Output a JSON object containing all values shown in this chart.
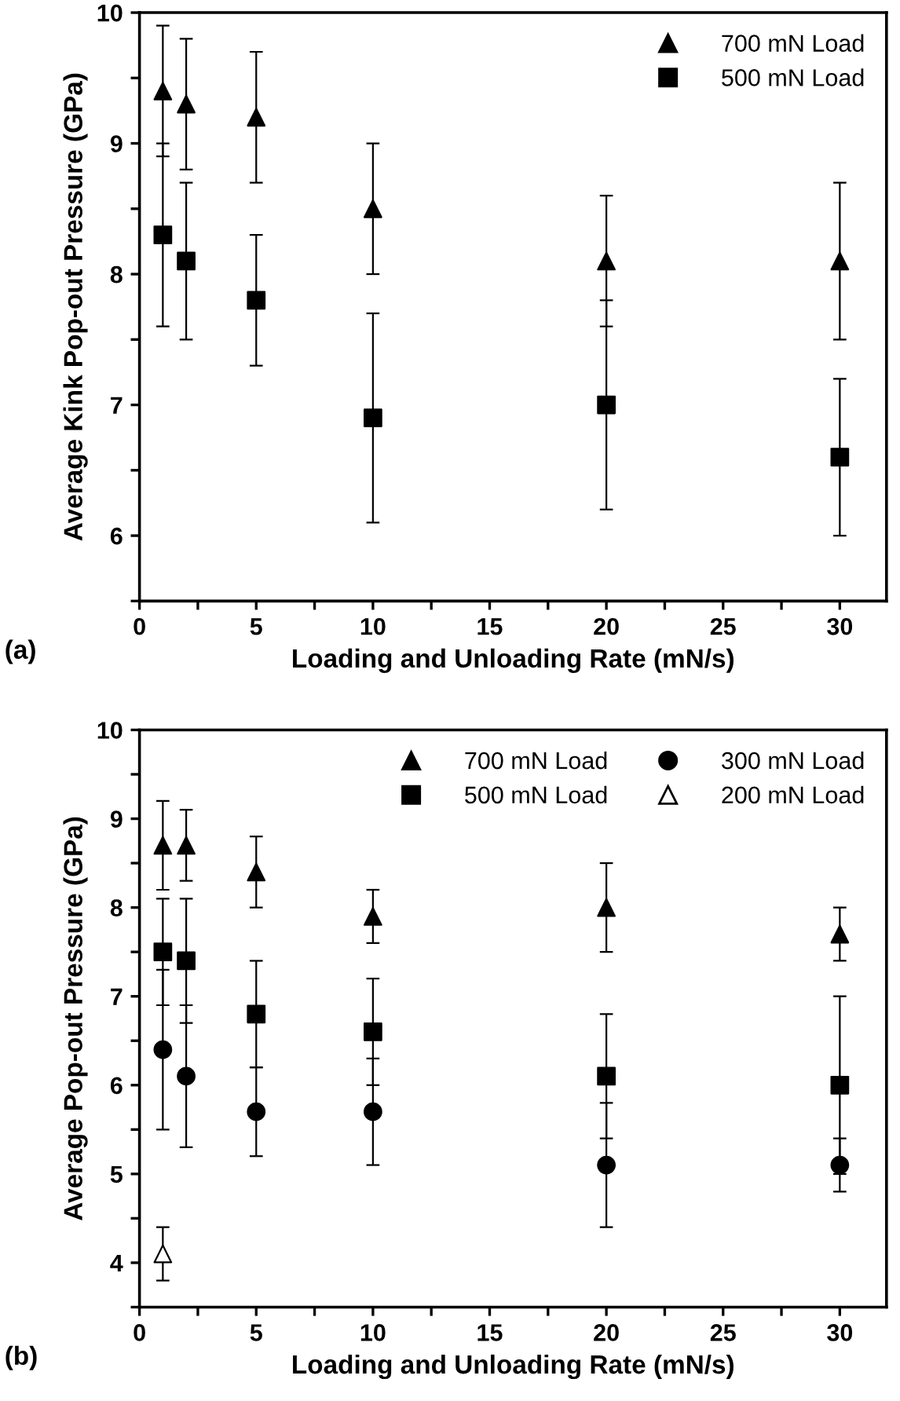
{
  "chart_data": [
    {
      "type": "scatter",
      "ylabel": "Average Kink Pop-out Pressure (GPa)",
      "xlabel": "Loading and Unloading Rate (mN/s)",
      "annotations": [
        "(a)"
      ],
      "xlim": [
        0,
        32
      ],
      "ylim": [
        5.5,
        10
      ],
      "xticks": [
        0,
        {
          "value": 2.5,
          "label": null
        },
        5,
        {
          "value": 7.5,
          "label": null
        },
        10,
        {
          "value": 12.5,
          "label": null
        },
        15,
        {
          "value": 17.5,
          "label": null
        },
        20,
        {
          "value": 22.5,
          "label": null
        },
        25,
        {
          "value": 27.5,
          "label": null
        },
        30
      ],
      "yticks": [
        {
          "value": 5.5,
          "label": null
        },
        6,
        {
          "value": 6.5,
          "label": null
        },
        7,
        {
          "value": 7.5,
          "label": null
        },
        8,
        {
          "value": 8.5,
          "label": null
        },
        9,
        {
          "value": 9.5,
          "label": null
        },
        10
      ],
      "legend": "top right",
      "grid": false,
      "series": [
        {
          "name": "700 mN Load",
          "color": "#000000",
          "marker": "triangle",
          "x": [
            1,
            2,
            5,
            10,
            20,
            30
          ],
          "values": [
            9.4,
            9.3,
            9.2,
            8.5,
            8.1,
            8.1
          ],
          "errors": [
            0.5,
            0.5,
            0.5,
            0.5,
            0.5,
            0.6
          ]
        },
        {
          "name": "500 mN Load",
          "color": "#000000",
          "marker": "square",
          "x": [
            1,
            2,
            5,
            10,
            20,
            30
          ],
          "values": [
            8.3,
            8.1,
            7.8,
            6.9,
            7.0,
            6.6
          ],
          "errors": [
            0.7,
            0.6,
            0.5,
            0.8,
            0.8,
            0.6
          ]
        }
      ]
    },
    {
      "type": "scatter",
      "ylabel": "Average Pop-out Pressure (GPa)",
      "xlabel": "Loading and Unloading Rate (mN/s)",
      "annotations": [
        "(b)"
      ],
      "xlim": [
        0,
        32
      ],
      "ylim": [
        3.5,
        10
      ],
      "xticks": [
        0,
        {
          "value": 2.5,
          "label": null
        },
        5,
        {
          "value": 7.5,
          "label": null
        },
        10,
        {
          "value": 12.5,
          "label": null
        },
        15,
        {
          "value": 17.5,
          "label": null
        },
        20,
        {
          "value": 22.5,
          "label": null
        },
        25,
        {
          "value": 27.5,
          "label": null
        },
        30
      ],
      "yticks": [
        {
          "value": 3.5,
          "label": null
        },
        4,
        {
          "value": 4.5,
          "label": null
        },
        5,
        {
          "value": 5.5,
          "label": null
        },
        6,
        {
          "value": 6.5,
          "label": null
        },
        7,
        {
          "value": 7.5,
          "label": null
        },
        8,
        {
          "value": 8.5,
          "label": null
        },
        9,
        {
          "value": 9.5,
          "label": null
        },
        10
      ],
      "legend": "top right",
      "grid": false,
      "series": [
        {
          "name": "700 mN Load",
          "color": "#000000",
          "marker": "triangle",
          "x": [
            1,
            2,
            5,
            10,
            20,
            30
          ],
          "values": [
            8.7,
            8.7,
            8.4,
            7.9,
            8.0,
            7.7
          ],
          "errors": [
            0.5,
            0.4,
            0.4,
            0.3,
            0.5,
            0.3
          ]
        },
        {
          "name": "500 mN Load",
          "color": "#000000",
          "marker": "square",
          "x": [
            1,
            2,
            5,
            10,
            20,
            30
          ],
          "values": [
            7.5,
            7.4,
            6.8,
            6.6,
            6.1,
            6.0
          ],
          "errors": [
            0.6,
            0.7,
            0.6,
            0.6,
            0.7,
            1.0
          ]
        },
        {
          "name": "300 mN Load",
          "color": "#000000",
          "marker": "circle",
          "x": [
            1,
            2,
            5,
            10,
            20,
            30
          ],
          "values": [
            6.4,
            6.1,
            5.7,
            5.7,
            5.1,
            5.1
          ],
          "errors": [
            0.9,
            0.8,
            0.5,
            0.6,
            0.7,
            0.3
          ]
        },
        {
          "name": "200 mN Load",
          "color": "#ffffff",
          "marker": "triangle",
          "x": [
            1
          ],
          "values": [
            4.1
          ],
          "errors": [
            0.3
          ]
        }
      ]
    }
  ]
}
